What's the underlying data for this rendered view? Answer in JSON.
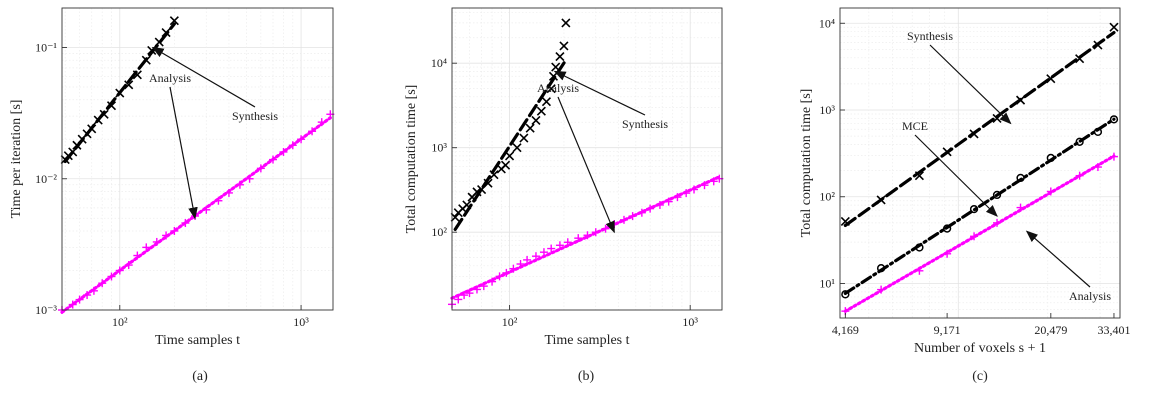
{
  "colors": {
    "synthesis": "#000000",
    "analysis": "#ff00ff",
    "mce": "#000000"
  },
  "chart_data": [
    {
      "type": "scatter",
      "caption": "(a)",
      "xlabel": "Time samples t",
      "ylabel": "Time per iteration [s]",
      "xscale": "log",
      "yscale": "log",
      "xlim": [
        48,
        1500
      ],
      "ylim": [
        0.001,
        0.2
      ],
      "xticks": [
        100,
        1000
      ],
      "xticklabels": [
        "10²",
        "10³"
      ],
      "yticks": [
        0.001,
        0.01,
        0.1
      ],
      "yticklabels": [
        "10⁻³",
        "10⁻²",
        "10⁻¹"
      ],
      "grid": true,
      "annotations": [
        {
          "text": "Synthesis",
          "target": [
            152,
            0.1
          ]
        },
        {
          "text": "Analysis",
          "target": [
            260,
            0.005
          ]
        }
      ],
      "series": [
        {
          "name": "Synthesis",
          "marker": "x",
          "color": "#000000",
          "fit": "dashed",
          "x": [
            50,
            52,
            55,
            58,
            62,
            66,
            70,
            76,
            82,
            90,
            100,
            112,
            125,
            140,
            150,
            165,
            180,
            200
          ],
          "y": [
            0.014,
            0.015,
            0.016,
            0.018,
            0.02,
            0.022,
            0.024,
            0.028,
            0.031,
            0.036,
            0.045,
            0.052,
            0.062,
            0.08,
            0.095,
            0.11,
            0.13,
            0.16
          ]
        },
        {
          "name": "Analysis",
          "marker": "+",
          "color": "#ff00ff",
          "fit": "dotted",
          "x": [
            48,
            55,
            60,
            66,
            72,
            80,
            90,
            100,
            112,
            125,
            140,
            160,
            180,
            200,
            230,
            260,
            300,
            350,
            400,
            460,
            520,
            600,
            700,
            800,
            900,
            1000,
            1150,
            1300,
            1450
          ],
          "y": [
            0.001,
            0.0011,
            0.0012,
            0.0013,
            0.0014,
            0.0016,
            0.0018,
            0.002,
            0.0022,
            0.0026,
            0.003,
            0.0033,
            0.0037,
            0.004,
            0.0046,
            0.0052,
            0.0058,
            0.0068,
            0.0078,
            0.009,
            0.01,
            0.012,
            0.014,
            0.016,
            0.018,
            0.02,
            0.023,
            0.027,
            0.031
          ]
        }
      ]
    },
    {
      "type": "scatter",
      "caption": "(b)",
      "xlabel": "Time samples t",
      "ylabel": "Total computation time [s]",
      "xscale": "log",
      "yscale": "log",
      "xlim": [
        48,
        1500
      ],
      "ylim": [
        12,
        45000
      ],
      "xticks": [
        100,
        1000
      ],
      "xticklabels": [
        "10²",
        "10³"
      ],
      "yticks": [
        100,
        1000,
        10000
      ],
      "yticklabels": [
        "10²",
        "10³",
        "10⁴"
      ],
      "grid": true,
      "annotations": [
        {
          "text": "Synthesis",
          "target": [
            178,
            8000
          ]
        },
        {
          "text": "Analysis",
          "target": [
            380,
            100
          ]
        }
      ],
      "series": [
        {
          "name": "Synthesis",
          "marker": "x",
          "color": "#000000",
          "fit": "dashed",
          "x": [
            50,
            52,
            55,
            58,
            62,
            66,
            70,
            76,
            82,
            90,
            95,
            100,
            110,
            120,
            130,
            140,
            150,
            160,
            170,
            175,
            180,
            190,
            200,
            205
          ],
          "y": [
            150,
            170,
            190,
            210,
            260,
            300,
            320,
            380,
            480,
            560,
            620,
            800,
            1000,
            1300,
            1700,
            2100,
            2700,
            3500,
            5000,
            7000,
            9000,
            12000,
            16000,
            30000
          ]
        },
        {
          "name": "Analysis",
          "marker": "+",
          "color": "#ff00ff",
          "fit": "dotted",
          "x": [
            48,
            52,
            56,
            60,
            66,
            72,
            80,
            88,
            96,
            105,
            115,
            125,
            140,
            155,
            170,
            190,
            210,
            240,
            270,
            300,
            340,
            380,
            430,
            480,
            540,
            600,
            680,
            760,
            850,
            950,
            1050,
            1200,
            1350,
            1450
          ],
          "y": [
            14,
            16,
            18,
            19,
            21,
            23,
            26,
            30,
            33,
            37,
            42,
            47,
            52,
            58,
            64,
            70,
            76,
            85,
            92,
            100,
            110,
            125,
            140,
            155,
            170,
            190,
            210,
            230,
            260,
            290,
            320,
            360,
            400,
            430
          ]
        }
      ]
    },
    {
      "type": "line",
      "caption": "(c)",
      "xlabel": "Number of voxels s + 1",
      "ylabel": "Total computation time [s]",
      "xscale": "log",
      "yscale": "log",
      "xlim": [
        4000,
        35000
      ],
      "ylim": [
        4,
        15000
      ],
      "xticks": [
        4169,
        9171,
        20479,
        33401
      ],
      "xticklabels": [
        "4,169",
        "9,171",
        "20,479",
        "33,401"
      ],
      "yticks": [
        10,
        100,
        1000,
        10000
      ],
      "yticklabels": [
        "10¹",
        "10²",
        "10³",
        "10⁴"
      ],
      "grid": true,
      "annotations": [
        {
          "text": "Synthesis",
          "target": [
            15000,
            700
          ]
        },
        {
          "text": "MCE",
          "target": [
            13500,
            60
          ]
        },
        {
          "text": "Analysis",
          "target": [
            17000,
            40
          ]
        }
      ],
      "series": [
        {
          "name": "Synthesis",
          "marker": "x",
          "color": "#000000",
          "fit": "dashed",
          "x": [
            4169,
            5500,
            7400,
            9171,
            11300,
            13500,
            16200,
            20479,
            25600,
            29500,
            33401
          ],
          "y": [
            52,
            92,
            175,
            330,
            530,
            800,
            1300,
            2300,
            3900,
            5600,
            9000
          ]
        },
        {
          "name": "MCE",
          "marker": "o",
          "color": "#000000",
          "fit": "dashdot",
          "x": [
            4169,
            5500,
            7400,
            9171,
            11300,
            13500,
            16200,
            20479,
            25600,
            29500,
            33401
          ],
          "y": [
            7.5,
            15,
            26,
            43,
            72,
            105,
            165,
            280,
            430,
            560,
            780
          ]
        },
        {
          "name": "Analysis",
          "marker": "+",
          "color": "#ff00ff",
          "fit": "dotted",
          "x": [
            4169,
            5500,
            7400,
            9171,
            11300,
            13500,
            16200,
            20479,
            25600,
            29500,
            33401
          ],
          "y": [
            4.8,
            8.5,
            14,
            22,
            35,
            50,
            75,
            115,
            175,
            220,
            290
          ]
        }
      ]
    }
  ]
}
